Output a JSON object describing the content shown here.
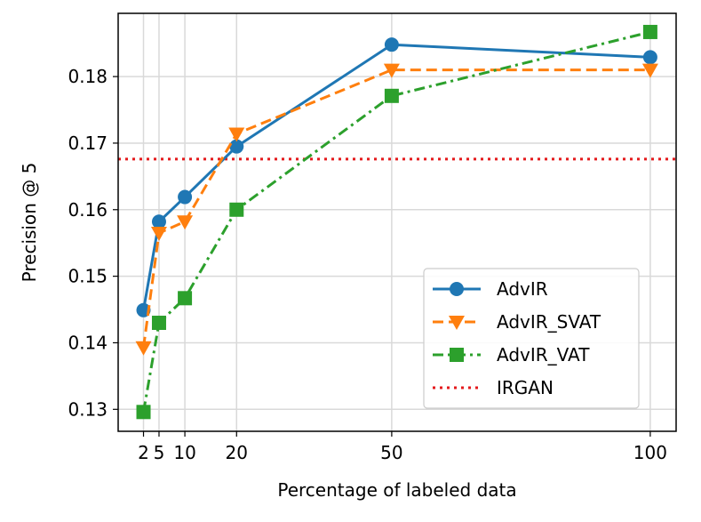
{
  "chart_data": {
    "type": "line",
    "title": "",
    "xlabel": "Percentage of labeled data",
    "ylabel": "Precision @ 5",
    "x": [
      2,
      5,
      10,
      20,
      50,
      100
    ],
    "xticks": [
      2,
      5,
      10,
      20,
      50,
      100
    ],
    "xtick_labels": [
      "2",
      "5",
      "10",
      "20",
      "50",
      "100"
    ],
    "xlim": [
      -2.9,
      105
    ],
    "yticks": [
      0.13,
      0.14,
      0.15,
      0.16,
      0.17,
      0.18
    ],
    "ytick_labels": [
      "0.13",
      "0.14",
      "0.15",
      "0.16",
      "0.17",
      "0.18"
    ],
    "ylim": [
      0.1267,
      0.1895
    ],
    "grid": true,
    "legend_position": "lower-right",
    "series": [
      {
        "name": "AdvIR",
        "values": [
          0.1449,
          0.1582,
          0.1619,
          0.1695,
          0.1848,
          0.1829
        ],
        "color": "#1f77b4",
        "linestyle": "solid",
        "marker": "circle"
      },
      {
        "name": "AdvIR_SVAT",
        "values": [
          0.1393,
          0.1565,
          0.1582,
          0.1714,
          0.181,
          0.181
        ],
        "color": "#ff7f0e",
        "linestyle": "dashed",
        "marker": "triangle-down"
      },
      {
        "name": "AdvIR_VAT",
        "values": [
          0.1296,
          0.143,
          0.1467,
          0.16,
          0.1771,
          0.1867
        ],
        "color": "#2ca02c",
        "linestyle": "dashdot",
        "marker": "square"
      }
    ],
    "reference_lines": [
      {
        "name": "IRGAN",
        "value": 0.1676,
        "color": "#e41a1c",
        "linestyle": "dotted"
      }
    ]
  }
}
